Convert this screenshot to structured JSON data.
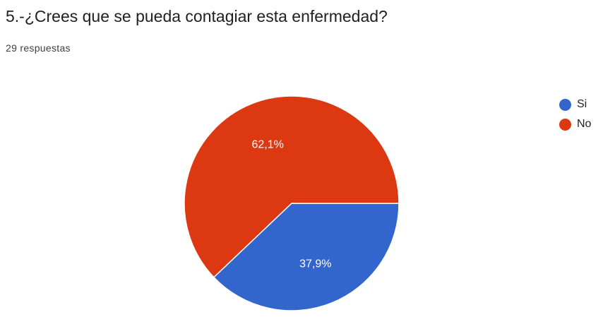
{
  "title": "5.-¿Crees que se pueda contagiar esta enfermedad?",
  "subtitle": "29 respuestas",
  "chart_data": {
    "type": "pie",
    "categories": [
      "Si",
      "No"
    ],
    "values": [
      37.9,
      62.1
    ],
    "labels": [
      "37,9%",
      "62,1%"
    ],
    "colors": [
      "#3366cc",
      "#dc3912"
    ],
    "legend_position": "right",
    "start_angle_note": "slices start at 3 o'clock, clockwise"
  }
}
